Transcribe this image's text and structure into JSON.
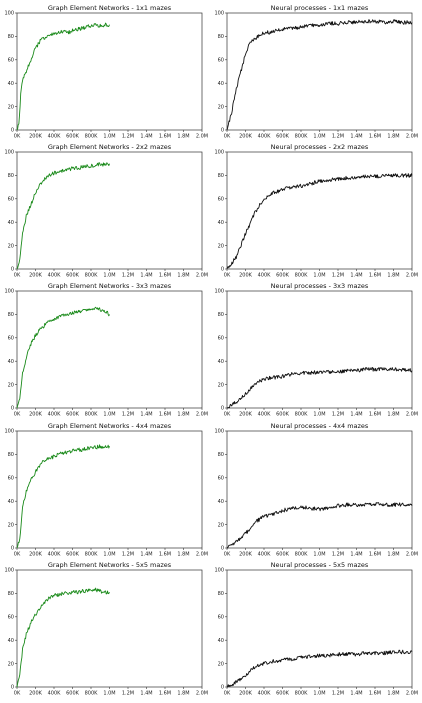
{
  "chart_data": [
    {
      "type": "line",
      "title": "Graph Element Networks - 1x1 mazes",
      "color": "#1a8a1a",
      "xlim": [
        0,
        2000000
      ],
      "ylim": [
        0,
        100
      ],
      "x_ticks": [
        "0K",
        "200K",
        "400K",
        "600K",
        "800K",
        "1.0M",
        "1.2M",
        "1.4M",
        "1.6M",
        "1.8M",
        "2.0M"
      ],
      "y_ticks": [
        "0",
        "20",
        "40",
        "60",
        "80",
        "100"
      ],
      "points": [
        [
          0,
          0
        ],
        [
          20000,
          5
        ],
        [
          40000,
          30
        ],
        [
          60000,
          42
        ],
        [
          100000,
          50
        ],
        [
          150000,
          60
        ],
        [
          200000,
          70
        ],
        [
          250000,
          76
        ],
        [
          300000,
          79
        ],
        [
          350000,
          81
        ],
        [
          400000,
          82
        ],
        [
          450000,
          83
        ],
        [
          500000,
          84
        ],
        [
          550000,
          83
        ],
        [
          600000,
          85
        ],
        [
          650000,
          86
        ],
        [
          700000,
          87
        ],
        [
          750000,
          88
        ],
        [
          800000,
          89
        ],
        [
          850000,
          90
        ],
        [
          900000,
          89
        ],
        [
          950000,
          90
        ],
        [
          1000000,
          90
        ]
      ]
    },
    {
      "type": "line",
      "title": "Neural processes - 1x1 mazes",
      "color": "#111111",
      "xlim": [
        0,
        2000000
      ],
      "ylim": [
        0,
        100
      ],
      "x_ticks": [
        "0K",
        "200K",
        "400K",
        "600K",
        "800K",
        "1.0M",
        "1.2M",
        "1.4M",
        "1.6M",
        "1.8M",
        "2.0M"
      ],
      "y_ticks": [
        "0",
        "20",
        "40",
        "60",
        "80",
        "100"
      ],
      "points": [
        [
          0,
          0
        ],
        [
          50000,
          15
        ],
        [
          100000,
          35
        ],
        [
          150000,
          50
        ],
        [
          200000,
          65
        ],
        [
          250000,
          75
        ],
        [
          300000,
          78
        ],
        [
          350000,
          81
        ],
        [
          400000,
          83
        ],
        [
          500000,
          84
        ],
        [
          600000,
          86
        ],
        [
          700000,
          87
        ],
        [
          800000,
          88
        ],
        [
          900000,
          89
        ],
        [
          1000000,
          90
        ],
        [
          1100000,
          91
        ],
        [
          1200000,
          91
        ],
        [
          1300000,
          92
        ],
        [
          1400000,
          92
        ],
        [
          1500000,
          93
        ],
        [
          1600000,
          93
        ],
        [
          1700000,
          92
        ],
        [
          1800000,
          93
        ],
        [
          1900000,
          92
        ],
        [
          2000000,
          92
        ]
      ]
    },
    {
      "type": "line",
      "title": "Graph Element Networks - 2x2 mazes",
      "color": "#1a8a1a",
      "xlim": [
        0,
        2000000
      ],
      "ylim": [
        0,
        100
      ],
      "x_ticks": [
        "0K",
        "200K",
        "400K",
        "600K",
        "800K",
        "1.0M",
        "1.2M",
        "1.4M",
        "1.6M",
        "1.8M",
        "2.0M"
      ],
      "y_ticks": [
        "0",
        "20",
        "40",
        "60",
        "80",
        "100"
      ],
      "points": [
        [
          0,
          0
        ],
        [
          30000,
          8
        ],
        [
          60000,
          30
        ],
        [
          100000,
          45
        ],
        [
          150000,
          55
        ],
        [
          200000,
          65
        ],
        [
          250000,
          72
        ],
        [
          300000,
          77
        ],
        [
          350000,
          80
        ],
        [
          400000,
          82
        ],
        [
          450000,
          83
        ],
        [
          500000,
          84
        ],
        [
          550000,
          85
        ],
        [
          600000,
          86
        ],
        [
          650000,
          86
        ],
        [
          700000,
          87
        ],
        [
          750000,
          88
        ],
        [
          800000,
          88
        ],
        [
          850000,
          89
        ],
        [
          900000,
          90
        ],
        [
          950000,
          89
        ],
        [
          1000000,
          90
        ]
      ]
    },
    {
      "type": "line",
      "title": "Neural processes - 2x2 mazes",
      "color": "#111111",
      "xlim": [
        0,
        2000000
      ],
      "ylim": [
        0,
        100
      ],
      "x_ticks": [
        "0K",
        "200K",
        "400K",
        "600K",
        "800K",
        "1.0M",
        "1.2M",
        "1.4M",
        "1.6M",
        "1.8M",
        "2.0M"
      ],
      "y_ticks": [
        "0",
        "20",
        "40",
        "60",
        "80",
        "100"
      ],
      "points": [
        [
          0,
          0
        ],
        [
          100000,
          10
        ],
        [
          200000,
          30
        ],
        [
          300000,
          48
        ],
        [
          400000,
          60
        ],
        [
          500000,
          65
        ],
        [
          600000,
          68
        ],
        [
          700000,
          70
        ],
        [
          800000,
          71
        ],
        [
          900000,
          73
        ],
        [
          1000000,
          75
        ],
        [
          1100000,
          76
        ],
        [
          1200000,
          77
        ],
        [
          1300000,
          78
        ],
        [
          1400000,
          78
        ],
        [
          1500000,
          79
        ],
        [
          1600000,
          79
        ],
        [
          1700000,
          80
        ],
        [
          1800000,
          80
        ],
        [
          1900000,
          80
        ],
        [
          2000000,
          80
        ]
      ]
    },
    {
      "type": "line",
      "title": "Graph Element Networks - 3x3 mazes",
      "color": "#1a8a1a",
      "xlim": [
        0,
        2000000
      ],
      "ylim": [
        0,
        100
      ],
      "x_ticks": [
        "0K",
        "200K",
        "400K",
        "600K",
        "800K",
        "1.0M",
        "1.2M",
        "1.4M",
        "1.6M",
        "1.8M",
        "2.0M"
      ],
      "y_ticks": [
        "0",
        "20",
        "40",
        "60",
        "80",
        "100"
      ],
      "points": [
        [
          0,
          0
        ],
        [
          30000,
          8
        ],
        [
          60000,
          30
        ],
        [
          100000,
          43
        ],
        [
          150000,
          55
        ],
        [
          200000,
          62
        ],
        [
          250000,
          67
        ],
        [
          300000,
          71
        ],
        [
          350000,
          74
        ],
        [
          400000,
          76
        ],
        [
          450000,
          78
        ],
        [
          500000,
          79
        ],
        [
          550000,
          80
        ],
        [
          600000,
          81
        ],
        [
          650000,
          82
        ],
        [
          700000,
          83
        ],
        [
          750000,
          84
        ],
        [
          800000,
          84
        ],
        [
          850000,
          85
        ],
        [
          900000,
          84
        ],
        [
          950000,
          83
        ],
        [
          1000000,
          80
        ]
      ]
    },
    {
      "type": "line",
      "title": "Neural processes - 3x3 mazes",
      "color": "#111111",
      "xlim": [
        0,
        2000000
      ],
      "ylim": [
        0,
        100
      ],
      "x_ticks": [
        "0K",
        "200K",
        "400K",
        "600K",
        "800K",
        "1.0M",
        "1.2M",
        "1.4M",
        "1.6M",
        "1.8M",
        "2.0M"
      ],
      "y_ticks": [
        "0",
        "20",
        "40",
        "60",
        "80",
        "100"
      ],
      "points": [
        [
          0,
          0
        ],
        [
          100000,
          5
        ],
        [
          200000,
          12
        ],
        [
          300000,
          20
        ],
        [
          400000,
          25
        ],
        [
          500000,
          26
        ],
        [
          600000,
          27
        ],
        [
          700000,
          29
        ],
        [
          800000,
          30
        ],
        [
          900000,
          30
        ],
        [
          1000000,
          31
        ],
        [
          1100000,
          31
        ],
        [
          1200000,
          31
        ],
        [
          1300000,
          32
        ],
        [
          1400000,
          32
        ],
        [
          1500000,
          33
        ],
        [
          1600000,
          33
        ],
        [
          1700000,
          33
        ],
        [
          1800000,
          33
        ],
        [
          1900000,
          33
        ],
        [
          2000000,
          32
        ]
      ]
    },
    {
      "type": "line",
      "title": "Graph Element Networks - 4x4 mazes",
      "color": "#1a8a1a",
      "xlim": [
        0,
        2000000
      ],
      "ylim": [
        0,
        100
      ],
      "x_ticks": [
        "0K",
        "200K",
        "400K",
        "600K",
        "800K",
        "1.0M",
        "1.2M",
        "1.4M",
        "1.6M",
        "1.8M",
        "2.0M"
      ],
      "y_ticks": [
        "0",
        "20",
        "40",
        "60",
        "80",
        "100"
      ],
      "points": [
        [
          0,
          0
        ],
        [
          30000,
          8
        ],
        [
          60000,
          35
        ],
        [
          100000,
          48
        ],
        [
          150000,
          58
        ],
        [
          200000,
          65
        ],
        [
          250000,
          71
        ],
        [
          300000,
          75
        ],
        [
          350000,
          77
        ],
        [
          400000,
          78
        ],
        [
          450000,
          80
        ],
        [
          500000,
          81
        ],
        [
          550000,
          82
        ],
        [
          600000,
          83
        ],
        [
          650000,
          84
        ],
        [
          700000,
          84
        ],
        [
          750000,
          85
        ],
        [
          800000,
          86
        ],
        [
          850000,
          86
        ],
        [
          900000,
          87
        ],
        [
          950000,
          86
        ],
        [
          1000000,
          87
        ]
      ]
    },
    {
      "type": "line",
      "title": "Neural processes - 4x4 mazes",
      "color": "#111111",
      "xlim": [
        0,
        2000000
      ],
      "ylim": [
        0,
        100
      ],
      "x_ticks": [
        "0K",
        "200K",
        "400K",
        "600K",
        "800K",
        "1.0M",
        "1.2M",
        "1.4M",
        "1.6M",
        "1.8M",
        "2.0M"
      ],
      "y_ticks": [
        "0",
        "20",
        "40",
        "60",
        "80",
        "100"
      ],
      "points": [
        [
          0,
          0
        ],
        [
          100000,
          5
        ],
        [
          200000,
          12
        ],
        [
          300000,
          22
        ],
        [
          400000,
          27
        ],
        [
          500000,
          29
        ],
        [
          600000,
          32
        ],
        [
          700000,
          34
        ],
        [
          800000,
          35
        ],
        [
          900000,
          34
        ],
        [
          1000000,
          33
        ],
        [
          1100000,
          34
        ],
        [
          1200000,
          36
        ],
        [
          1300000,
          37
        ],
        [
          1400000,
          37
        ],
        [
          1500000,
          37
        ],
        [
          1600000,
          38
        ],
        [
          1700000,
          37
        ],
        [
          1800000,
          37
        ],
        [
          1900000,
          37
        ],
        [
          2000000,
          36
        ]
      ]
    },
    {
      "type": "line",
      "title": "Graph Element Networks - 5x5 mazes",
      "color": "#1a8a1a",
      "xlim": [
        0,
        2000000
      ],
      "ylim": [
        0,
        100
      ],
      "x_ticks": [
        "0K",
        "200K",
        "400K",
        "600K",
        "800K",
        "1.0M",
        "1.2M",
        "1.4M",
        "1.6M",
        "1.8M",
        "2.0M"
      ],
      "y_ticks": [
        "0",
        "20",
        "40",
        "60",
        "80",
        "100"
      ],
      "points": [
        [
          0,
          0
        ],
        [
          30000,
          10
        ],
        [
          60000,
          32
        ],
        [
          100000,
          45
        ],
        [
          150000,
          55
        ],
        [
          200000,
          62
        ],
        [
          250000,
          68
        ],
        [
          300000,
          72
        ],
        [
          350000,
          76
        ],
        [
          400000,
          78
        ],
        [
          450000,
          79
        ],
        [
          500000,
          80
        ],
        [
          550000,
          80
        ],
        [
          600000,
          81
        ],
        [
          650000,
          81
        ],
        [
          700000,
          82
        ],
        [
          750000,
          82
        ],
        [
          800000,
          83
        ],
        [
          850000,
          83
        ],
        [
          900000,
          82
        ],
        [
          950000,
          81
        ],
        [
          1000000,
          81
        ]
      ]
    },
    {
      "type": "line",
      "title": "Neural processes - 5x5 mazes",
      "color": "#111111",
      "xlim": [
        0,
        2000000
      ],
      "ylim": [
        0,
        100
      ],
      "x_ticks": [
        "0K",
        "200K",
        "400K",
        "600K",
        "800K",
        "1.0M",
        "1.2M",
        "1.4M",
        "1.6M",
        "1.8M",
        "2.0M"
      ],
      "y_ticks": [
        "0",
        "20",
        "40",
        "60",
        "80",
        "100"
      ],
      "points": [
        [
          0,
          0
        ],
        [
          100000,
          4
        ],
        [
          200000,
          10
        ],
        [
          300000,
          17
        ],
        [
          400000,
          20
        ],
        [
          500000,
          22
        ],
        [
          600000,
          23
        ],
        [
          700000,
          24
        ],
        [
          800000,
          25
        ],
        [
          900000,
          26
        ],
        [
          1000000,
          27
        ],
        [
          1100000,
          27
        ],
        [
          1200000,
          28
        ],
        [
          1300000,
          28
        ],
        [
          1400000,
          28
        ],
        [
          1500000,
          29
        ],
        [
          1600000,
          29
        ],
        [
          1700000,
          29
        ],
        [
          1800000,
          30
        ],
        [
          1900000,
          30
        ],
        [
          2000000,
          30
        ]
      ]
    }
  ]
}
